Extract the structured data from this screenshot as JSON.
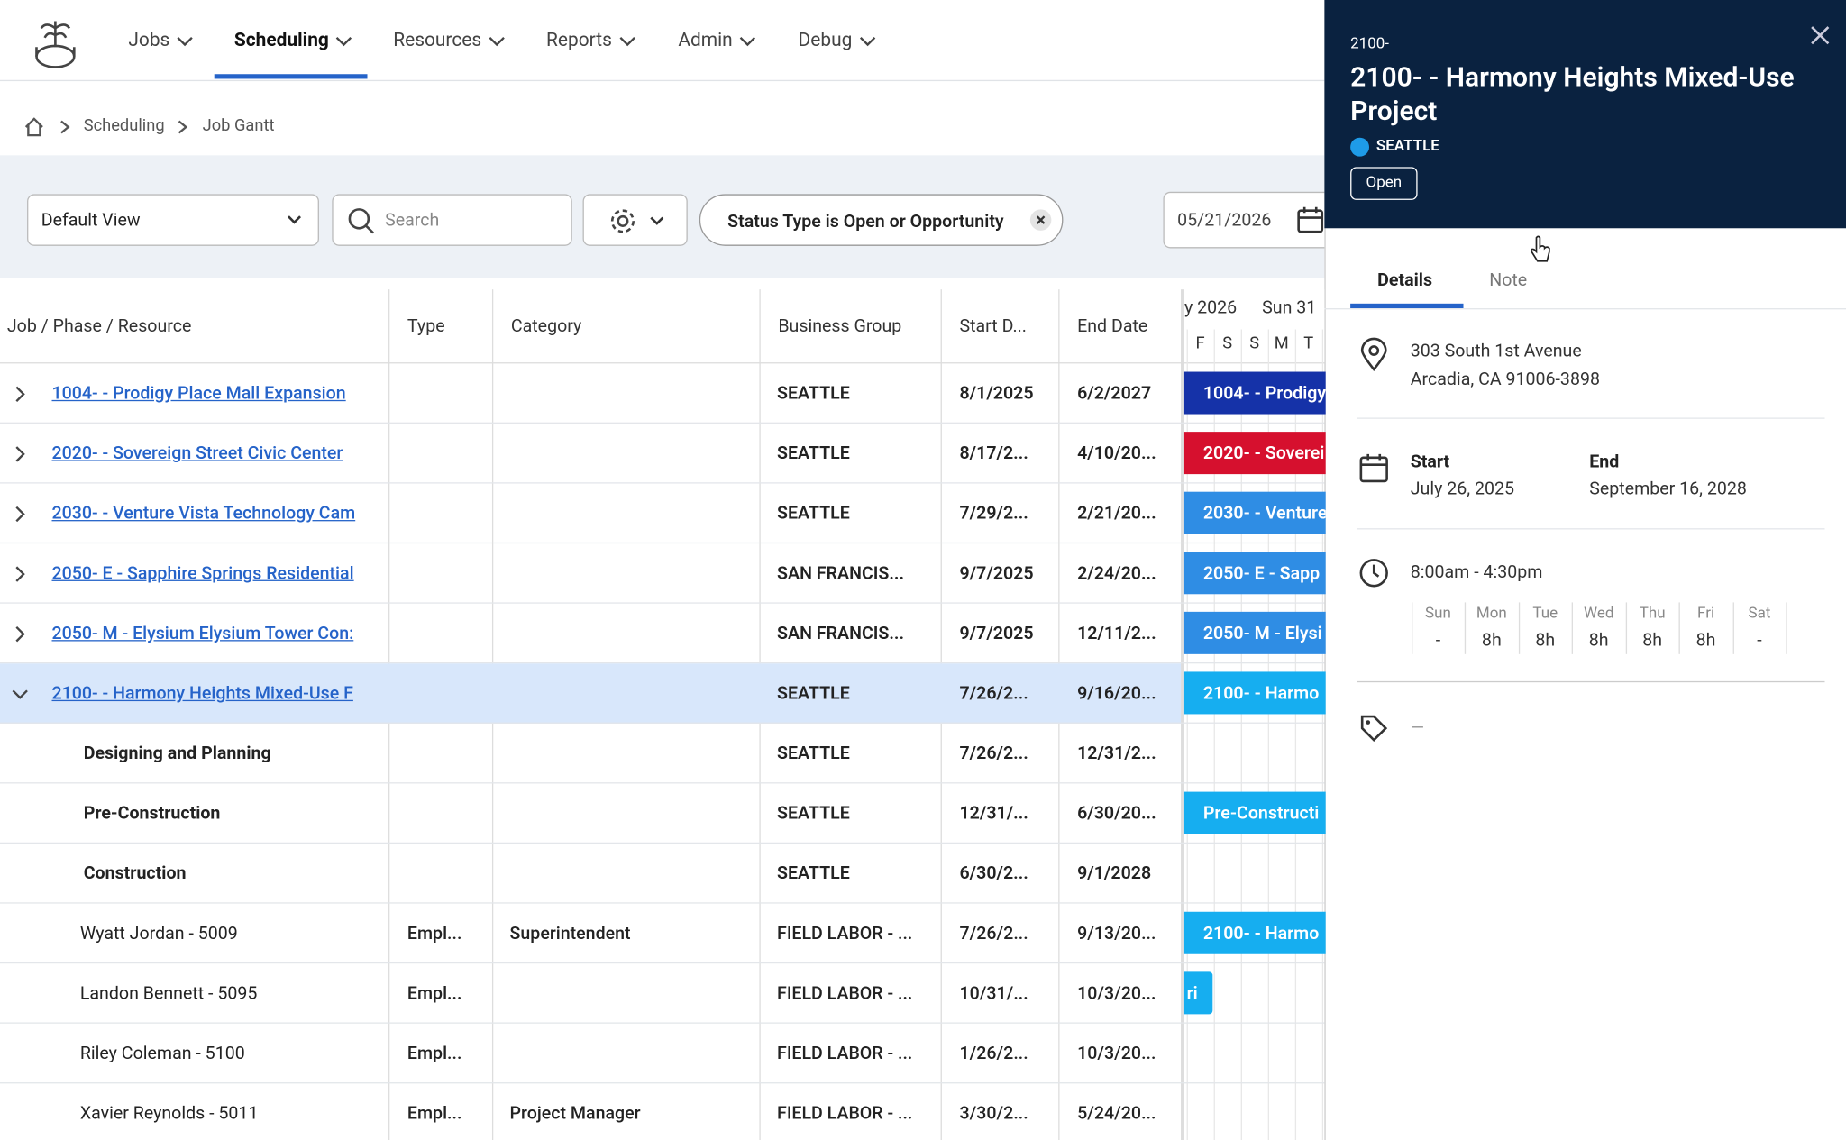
{
  "nav": {
    "items": [
      "Jobs",
      "Scheduling",
      "Resources",
      "Reports",
      "Admin",
      "Debug"
    ],
    "active": 1
  },
  "breadcrumb": [
    "Scheduling",
    "Job Gantt"
  ],
  "toolbar": {
    "view": "Default View",
    "search_placeholder": "Search",
    "filter": "Status Type is Open or Opportunity",
    "date": "05/21/2026"
  },
  "table": {
    "columns": [
      "Job / Phase / Resource",
      "Type",
      "Category",
      "Business Group",
      "Start D...",
      "End Date"
    ],
    "rows": [
      {
        "kind": "job",
        "name": "1004- - Prodigy Place Mall Expansion",
        "type": null,
        "category": null,
        "group": "SEATTLE",
        "start": "8/1/2025",
        "end": "6/2/2027",
        "bar": {
          "label": "1004- - Prodigy",
          "color": "#1532a8"
        }
      },
      {
        "kind": "job",
        "name": "2020- - Sovereign Street Civic Center",
        "type": null,
        "category": null,
        "group": "SEATTLE",
        "start": "8/17/2...",
        "end": "4/10/20...",
        "bar": {
          "label": "2020- - Soverei",
          "color": "#d6102e"
        }
      },
      {
        "kind": "job",
        "name": "2030- - Venture Vista Technology Cam",
        "type": null,
        "category": null,
        "group": "SEATTLE",
        "start": "7/29/2...",
        "end": "2/21/20...",
        "bar": {
          "label": "2030- - Venture",
          "color": "#2f8de4"
        }
      },
      {
        "kind": "job",
        "name": "2050- E - Sapphire Springs Residential",
        "type": null,
        "category": null,
        "group": "SAN FRANCIS...",
        "start": "9/7/2025",
        "end": "2/24/20...",
        "bar": {
          "label": "2050- E - Sapp",
          "color": "#2f8de4"
        }
      },
      {
        "kind": "job",
        "name": "2050- M - Elysium Elysium Tower Con:",
        "type": null,
        "category": null,
        "group": "SAN FRANCIS...",
        "start": "9/7/2025",
        "end": "12/11/2...",
        "bar": {
          "label": "2050- M - Elysi",
          "color": "#2f8de4"
        }
      },
      {
        "kind": "job",
        "expanded": true,
        "selected": true,
        "name": "2100- - Harmony Heights Mixed-Use F",
        "type": null,
        "category": null,
        "group": "SEATTLE",
        "start": "7/26/2...",
        "end": "9/16/20...",
        "bar": {
          "label": "2100- - Harmo",
          "color": "#16aef0"
        }
      },
      {
        "kind": "phase",
        "name": "Designing and Planning",
        "type": null,
        "category": null,
        "group": "SEATTLE",
        "start": "7/26/2...",
        "end": "12/31/2...",
        "bar": null
      },
      {
        "kind": "phase",
        "name": "Pre-Construction",
        "type": null,
        "category": null,
        "group": "SEATTLE",
        "start": "12/31/...",
        "end": "6/30/20...",
        "bar": {
          "label": "Pre-Constructi",
          "color": "#16aef0"
        }
      },
      {
        "kind": "phase",
        "name": "Construction",
        "type": null,
        "category": null,
        "group": "SEATTLE",
        "start": "6/30/2...",
        "end": "9/1/2028",
        "bar": null
      },
      {
        "kind": "resource",
        "name": "Wyatt Jordan - 5009",
        "type": "Empl...",
        "category": "Superintendent",
        "group": "FIELD LABOR - ...",
        "start": "7/26/2...",
        "end": "9/13/20...",
        "bar": {
          "label": "2100- - Harmo",
          "color": "#16aef0"
        }
      },
      {
        "kind": "resource",
        "name": "Landon Bennett - 5095",
        "type": "Empl...",
        "category": null,
        "group": "FIELD LABOR - ...",
        "start": "10/31/...",
        "end": "10/3/20...",
        "bar": {
          "label": "ri",
          "color": "#16aef0"
        }
      },
      {
        "kind": "resource",
        "name": "Riley Coleman - 5100",
        "type": "Empl...",
        "category": null,
        "group": "FIELD LABOR - ...",
        "start": "1/26/2...",
        "end": "10/3/20...",
        "bar": null
      },
      {
        "kind": "resource",
        "name": "Xavier Reynolds - 5011",
        "type": "Empl...",
        "category": "Project Manager",
        "group": "FIELD LABOR - ...",
        "start": "3/30/2...",
        "end": "5/24/20...",
        "bar": null
      }
    ]
  },
  "gantt": {
    "month": "y 2026",
    "week": "Sun 31",
    "days": [
      "F",
      "S",
      "S",
      "M",
      "T"
    ]
  },
  "panel": {
    "code": "2100-",
    "title": "2100- - Harmony Heights Mixed-Use Project",
    "region": "SEATTLE",
    "status": "Open",
    "tabs": [
      "Details",
      "Note"
    ],
    "address": [
      "303 South 1st Avenue",
      "Arcadia, CA 91006-3898"
    ],
    "start_label": "Start",
    "start": "July 26, 2025",
    "end_label": "End",
    "end": "September 16, 2028",
    "hours": "8:00am - 4:30pm",
    "week": [
      {
        "day": "Sun",
        "hours": "-"
      },
      {
        "day": "Mon",
        "hours": "8h"
      },
      {
        "day": "Tue",
        "hours": "8h"
      },
      {
        "day": "Wed",
        "hours": "8h"
      },
      {
        "day": "Thu",
        "hours": "8h"
      },
      {
        "day": "Fri",
        "hours": "8h"
      },
      {
        "day": "Sat",
        "hours": "-"
      }
    ],
    "tags": "—"
  }
}
